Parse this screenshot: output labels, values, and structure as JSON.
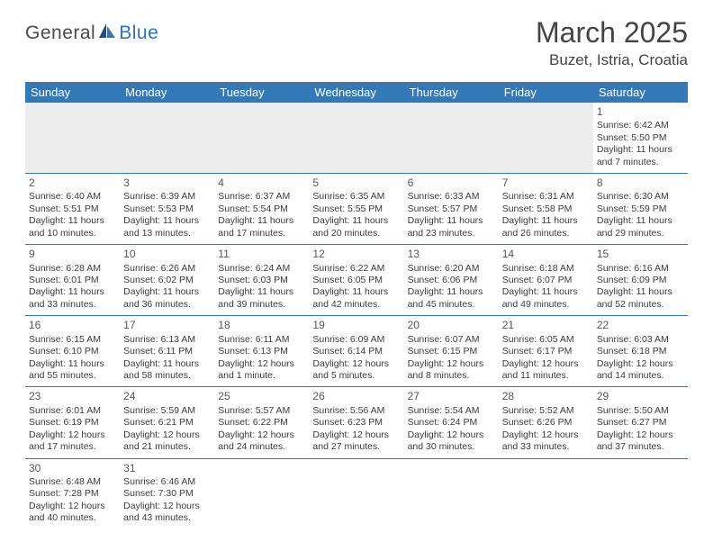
{
  "logo": {
    "general": "General",
    "blue": "Blue"
  },
  "title": {
    "month_year": "March 2025",
    "location": "Buzet, Istria, Croatia"
  },
  "colors": {
    "header_bg": "#3379b7",
    "header_text": "#ffffff",
    "divider": "#3379b7",
    "empty_bg": "#ededed",
    "body_text": "#3a3a3a",
    "title_text": "#444444",
    "logo_gray": "#4a4a4a",
    "logo_blue": "#2d72b9"
  },
  "weekdays": [
    "Sunday",
    "Monday",
    "Tuesday",
    "Wednesday",
    "Thursday",
    "Friday",
    "Saturday"
  ],
  "weeks": [
    [
      null,
      null,
      null,
      null,
      null,
      null,
      {
        "n": "1",
        "sr": "Sunrise: 6:42 AM",
        "ss": "Sunset: 5:50 PM",
        "dl": "Daylight: 11 hours and 7 minutes."
      }
    ],
    [
      {
        "n": "2",
        "sr": "Sunrise: 6:40 AM",
        "ss": "Sunset: 5:51 PM",
        "dl": "Daylight: 11 hours and 10 minutes."
      },
      {
        "n": "3",
        "sr": "Sunrise: 6:39 AM",
        "ss": "Sunset: 5:53 PM",
        "dl": "Daylight: 11 hours and 13 minutes."
      },
      {
        "n": "4",
        "sr": "Sunrise: 6:37 AM",
        "ss": "Sunset: 5:54 PM",
        "dl": "Daylight: 11 hours and 17 minutes."
      },
      {
        "n": "5",
        "sr": "Sunrise: 6:35 AM",
        "ss": "Sunset: 5:55 PM",
        "dl": "Daylight: 11 hours and 20 minutes."
      },
      {
        "n": "6",
        "sr": "Sunrise: 6:33 AM",
        "ss": "Sunset: 5:57 PM",
        "dl": "Daylight: 11 hours and 23 minutes."
      },
      {
        "n": "7",
        "sr": "Sunrise: 6:31 AM",
        "ss": "Sunset: 5:58 PM",
        "dl": "Daylight: 11 hours and 26 minutes."
      },
      {
        "n": "8",
        "sr": "Sunrise: 6:30 AM",
        "ss": "Sunset: 5:59 PM",
        "dl": "Daylight: 11 hours and 29 minutes."
      }
    ],
    [
      {
        "n": "9",
        "sr": "Sunrise: 6:28 AM",
        "ss": "Sunset: 6:01 PM",
        "dl": "Daylight: 11 hours and 33 minutes."
      },
      {
        "n": "10",
        "sr": "Sunrise: 6:26 AM",
        "ss": "Sunset: 6:02 PM",
        "dl": "Daylight: 11 hours and 36 minutes."
      },
      {
        "n": "11",
        "sr": "Sunrise: 6:24 AM",
        "ss": "Sunset: 6:03 PM",
        "dl": "Daylight: 11 hours and 39 minutes."
      },
      {
        "n": "12",
        "sr": "Sunrise: 6:22 AM",
        "ss": "Sunset: 6:05 PM",
        "dl": "Daylight: 11 hours and 42 minutes."
      },
      {
        "n": "13",
        "sr": "Sunrise: 6:20 AM",
        "ss": "Sunset: 6:06 PM",
        "dl": "Daylight: 11 hours and 45 minutes."
      },
      {
        "n": "14",
        "sr": "Sunrise: 6:18 AM",
        "ss": "Sunset: 6:07 PM",
        "dl": "Daylight: 11 hours and 49 minutes."
      },
      {
        "n": "15",
        "sr": "Sunrise: 6:16 AM",
        "ss": "Sunset: 6:09 PM",
        "dl": "Daylight: 11 hours and 52 minutes."
      }
    ],
    [
      {
        "n": "16",
        "sr": "Sunrise: 6:15 AM",
        "ss": "Sunset: 6:10 PM",
        "dl": "Daylight: 11 hours and 55 minutes."
      },
      {
        "n": "17",
        "sr": "Sunrise: 6:13 AM",
        "ss": "Sunset: 6:11 PM",
        "dl": "Daylight: 11 hours and 58 minutes."
      },
      {
        "n": "18",
        "sr": "Sunrise: 6:11 AM",
        "ss": "Sunset: 6:13 PM",
        "dl": "Daylight: 12 hours and 1 minute."
      },
      {
        "n": "19",
        "sr": "Sunrise: 6:09 AM",
        "ss": "Sunset: 6:14 PM",
        "dl": "Daylight: 12 hours and 5 minutes."
      },
      {
        "n": "20",
        "sr": "Sunrise: 6:07 AM",
        "ss": "Sunset: 6:15 PM",
        "dl": "Daylight: 12 hours and 8 minutes."
      },
      {
        "n": "21",
        "sr": "Sunrise: 6:05 AM",
        "ss": "Sunset: 6:17 PM",
        "dl": "Daylight: 12 hours and 11 minutes."
      },
      {
        "n": "22",
        "sr": "Sunrise: 6:03 AM",
        "ss": "Sunset: 6:18 PM",
        "dl": "Daylight: 12 hours and 14 minutes."
      }
    ],
    [
      {
        "n": "23",
        "sr": "Sunrise: 6:01 AM",
        "ss": "Sunset: 6:19 PM",
        "dl": "Daylight: 12 hours and 17 minutes."
      },
      {
        "n": "24",
        "sr": "Sunrise: 5:59 AM",
        "ss": "Sunset: 6:21 PM",
        "dl": "Daylight: 12 hours and 21 minutes."
      },
      {
        "n": "25",
        "sr": "Sunrise: 5:57 AM",
        "ss": "Sunset: 6:22 PM",
        "dl": "Daylight: 12 hours and 24 minutes."
      },
      {
        "n": "26",
        "sr": "Sunrise: 5:56 AM",
        "ss": "Sunset: 6:23 PM",
        "dl": "Daylight: 12 hours and 27 minutes."
      },
      {
        "n": "27",
        "sr": "Sunrise: 5:54 AM",
        "ss": "Sunset: 6:24 PM",
        "dl": "Daylight: 12 hours and 30 minutes."
      },
      {
        "n": "28",
        "sr": "Sunrise: 5:52 AM",
        "ss": "Sunset: 6:26 PM",
        "dl": "Daylight: 12 hours and 33 minutes."
      },
      {
        "n": "29",
        "sr": "Sunrise: 5:50 AM",
        "ss": "Sunset: 6:27 PM",
        "dl": "Daylight: 12 hours and 37 minutes."
      }
    ],
    [
      {
        "n": "30",
        "sr": "Sunrise: 6:48 AM",
        "ss": "Sunset: 7:28 PM",
        "dl": "Daylight: 12 hours and 40 minutes."
      },
      {
        "n": "31",
        "sr": "Sunrise: 6:46 AM",
        "ss": "Sunset: 7:30 PM",
        "dl": "Daylight: 12 hours and 43 minutes."
      },
      null,
      null,
      null,
      null,
      null
    ]
  ]
}
